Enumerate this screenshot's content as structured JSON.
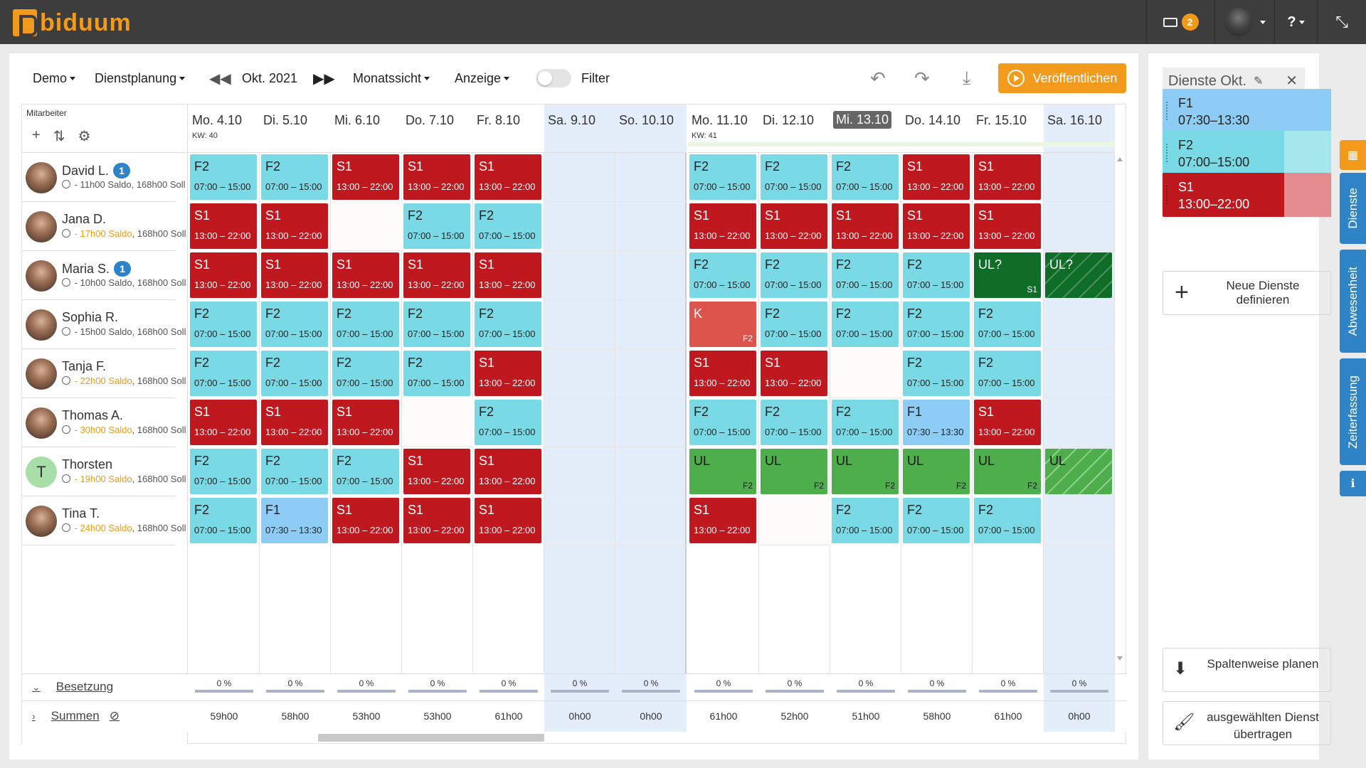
{
  "app": {
    "brand": "biduum",
    "notifications": "2",
    "help": "?"
  },
  "toolbar": {
    "company": "Demo",
    "module": "Dienstplanung",
    "period": "Okt. 2021",
    "view": "Monatssicht",
    "display": "Anzeige",
    "filter": "Filter",
    "publish": "Veröffentlichen"
  },
  "grid": {
    "employee_header": "Mitarbeiter",
    "days": [
      {
        "label": "Mo. 4.10",
        "kw": "KW: 40"
      },
      {
        "label": "Di. 5.10"
      },
      {
        "label": "Mi. 6.10"
      },
      {
        "label": "Do. 7.10"
      },
      {
        "label": "Fr. 8.10"
      },
      {
        "label": "Sa. 9.10"
      },
      {
        "label": "So. 10.10"
      },
      {
        "label": "Mo. 11.10",
        "kw": "KW: 41"
      },
      {
        "label": "Di. 12.10"
      },
      {
        "label": "Mi. 13.10"
      },
      {
        "label": "Do. 14.10"
      },
      {
        "label": "Fr. 15.10"
      },
      {
        "label": "Sa. 16.10"
      }
    ],
    "employees": [
      {
        "name": "David L.",
        "badge": "1",
        "saldo_pre": " - 11h00 Saldo, 168h00 Soll",
        "saldo_orange": ""
      },
      {
        "name": "Jana D.",
        "badge": "",
        "saldo_pre": " ",
        "saldo_orange": "- 17h00 Saldo",
        "saldo_post": ", 168h00 Soll"
      },
      {
        "name": "Maria S.",
        "badge": "1",
        "saldo_pre": " - 10h00 Saldo, 168h00 Soll",
        "saldo_orange": ""
      },
      {
        "name": "Sophia R.",
        "badge": "",
        "saldo_pre": " - 15h00 Saldo, 168h00 Soll",
        "saldo_orange": ""
      },
      {
        "name": "Tanja F.",
        "badge": "",
        "saldo_pre": " ",
        "saldo_orange": "- 22h00 Saldo",
        "saldo_post": ", 168h00 Soll"
      },
      {
        "name": "Thomas A.",
        "badge": "",
        "saldo_pre": " ",
        "saldo_orange": "- 30h00 Saldo",
        "saldo_post": ", 168h00 Soll"
      },
      {
        "name": "Thorsten",
        "badge": "",
        "initial": "T",
        "saldo_pre": " ",
        "saldo_orange": "- 19h00 Saldo",
        "saldo_post": ", 168h00 Soll"
      },
      {
        "name": "Tina T.",
        "badge": "",
        "saldo_pre": " ",
        "saldo_orange": "- 24h00 Saldo",
        "saldo_post": ", 168h00 Soll"
      }
    ],
    "shifts": [
      [
        "F2",
        "F2",
        "S1",
        "S1",
        "S1",
        "",
        "",
        "F2",
        "F2",
        "F2",
        "S1",
        "S1",
        ""
      ],
      [
        "S1",
        "S1",
        "~",
        "F2",
        "F2",
        "",
        "",
        "S1",
        "S1",
        "S1",
        "S1",
        "S1",
        ""
      ],
      [
        "S1",
        "S1",
        "S1",
        "S1",
        "S1",
        "",
        "",
        "F2",
        "F2",
        "F2",
        "F2",
        "UL?|S1",
        "UL?stripe"
      ],
      [
        "F2",
        "F2",
        "F2",
        "F2",
        "F2",
        "",
        "",
        "K|F2",
        "F2",
        "F2",
        "F2",
        "F2",
        ""
      ],
      [
        "F2",
        "F2",
        "F2",
        "F2",
        "S1",
        "",
        "",
        "S1",
        "S1",
        "~",
        "F2",
        "F2",
        ""
      ],
      [
        "S1",
        "S1",
        "S1",
        "~",
        "F2",
        "",
        "",
        "F2",
        "F2",
        "F2",
        "F1",
        "S1",
        ""
      ],
      [
        "F2",
        "F2",
        "F2",
        "S1",
        "S1",
        "",
        "",
        "UL|F2",
        "UL|F2",
        "UL|F2",
        "UL|F2",
        "UL|F2",
        "ULstripe"
      ],
      [
        "F2",
        "F1",
        "S1",
        "S1",
        "S1",
        "",
        "",
        "S1",
        "~",
        "F2",
        "F2",
        "F2",
        ""
      ]
    ],
    "times": {
      "F1": "07:30 – 13:30",
      "F2": "07:00 – 15:00",
      "S1": "13:00 – 22:00"
    },
    "colors": {
      "F1": "#8dcdf5",
      "F2": "#79d9e4",
      "S1": "#c0181f",
      "K": "#dc544c",
      "UL": "#4eae4c",
      "UL?": "#0f6d27"
    },
    "footer": {
      "besetzung_label": "Besetzung",
      "summen_label": "Summen",
      "percents": [
        "0 %",
        "0 %",
        "0 %",
        "0 %",
        "0 %",
        "0 %",
        "0 %",
        "0 %",
        "0 %",
        "0 %",
        "0 %",
        "0 %",
        "0 %"
      ],
      "sums": [
        "59h00",
        "58h00",
        "53h00",
        "53h00",
        "61h00",
        "0h00",
        "0h00",
        "61h00",
        "52h00",
        "51h00",
        "58h00",
        "61h00",
        "0h00"
      ]
    }
  },
  "right_panel": {
    "title": "Dienste Okt.",
    "shifts": [
      {
        "code": "F1",
        "time": "07:30–13:30"
      },
      {
        "code": "F2",
        "time": "07:00–15:00"
      },
      {
        "code": "S1",
        "time": "13:00–22:00"
      }
    ],
    "new_shift": "Neue Dienste definieren",
    "plan_columns": "Spaltenweise planen",
    "transfer": "ausgewählten Dienst übertragen"
  },
  "side_tabs": [
    "Dienste",
    "Abwesenheit",
    "Zeiterfassung"
  ]
}
